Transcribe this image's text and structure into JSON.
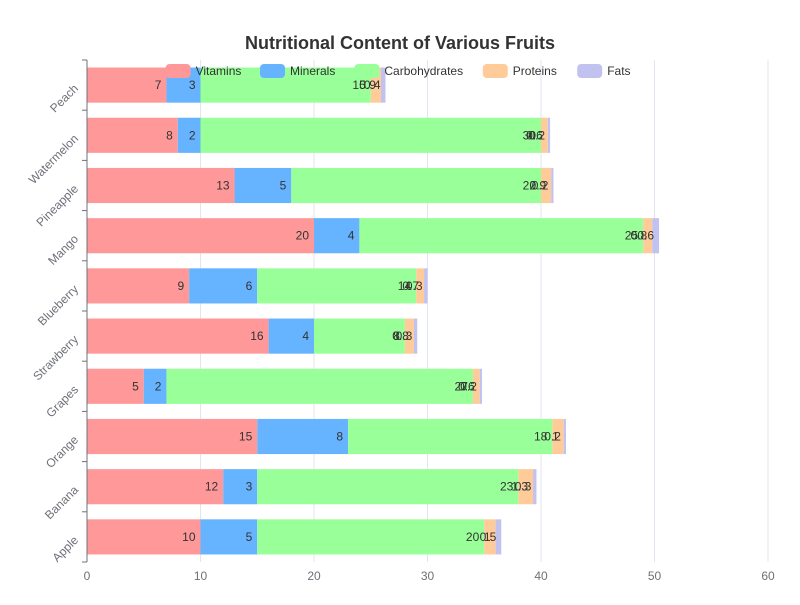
{
  "chart_data": {
    "type": "bar",
    "orientation": "horizontal",
    "stacked": true,
    "title": "Nutritional Content of Various Fruits",
    "categories": [
      "Apple",
      "Banana",
      "Orange",
      "Grapes",
      "Strawberry",
      "Blueberry",
      "Mango",
      "Pineapple",
      "Watermelon",
      "Peach"
    ],
    "series": [
      {
        "name": "Vitamins",
        "color": "#ff9999",
        "values": [
          10,
          12,
          15,
          5,
          16,
          9,
          20,
          13,
          8,
          7
        ]
      },
      {
        "name": "Minerals",
        "color": "#66b3ff",
        "values": [
          5,
          3,
          8,
          2,
          4,
          6,
          4,
          5,
          2,
          3
        ]
      },
      {
        "name": "Carbohydrates",
        "color": "#99ff99",
        "values": [
          20,
          23,
          18,
          27,
          8,
          14,
          25,
          22,
          30,
          15
        ]
      },
      {
        "name": "Proteins",
        "color": "#ffcc99",
        "values": [
          1,
          1.3,
          1,
          0.6,
          0.8,
          0.7,
          0.8,
          0.9,
          0.6,
          0.9
        ]
      },
      {
        "name": "Fats",
        "color": "#c2c2f0",
        "values": [
          0.5,
          0.3,
          0.2,
          0.2,
          0.3,
          0.3,
          0.6,
          0.2,
          0.2,
          0.4
        ]
      }
    ],
    "xlim": [
      0,
      60
    ],
    "x_ticks": [
      0,
      10,
      20,
      30,
      40,
      50,
      60
    ],
    "grid": true,
    "legend_position": "top"
  }
}
